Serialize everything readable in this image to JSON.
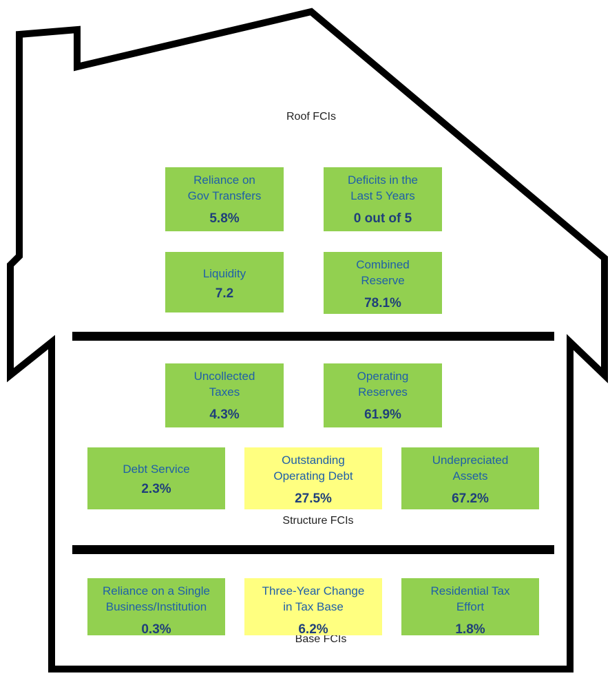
{
  "sections": [
    {
      "label": "Roof FCIs",
      "boxes": [
        {
          "lines": [
            "Reliance on",
            "Gov Transfers"
          ],
          "value": "5.8%",
          "color": "#92d050"
        },
        {
          "lines": [
            "Deficits in the",
            "Last 5 Years"
          ],
          "value": "0 out of 5",
          "color": "#92d050"
        },
        {
          "lines": [
            "Liquidity"
          ],
          "value": "7.2",
          "color": "#92d050"
        },
        {
          "lines": [
            "Combined",
            "Reserve"
          ],
          "value": "78.1%",
          "color": "#92d050"
        }
      ]
    },
    {
      "label": "Structure FCIs",
      "boxes": [
        {
          "lines": [
            "Uncollected",
            "Taxes"
          ],
          "value": "4.3%",
          "color": "#92d050"
        },
        {
          "lines": [
            "Operating",
            "Reserves"
          ],
          "value": "61.9%",
          "color": "#92d050"
        },
        {
          "lines": [
            "Debt Service"
          ],
          "value": "2.3%",
          "color": "#92d050"
        },
        {
          "lines": [
            "Outstanding",
            "Operating Debt"
          ],
          "value": "27.5%",
          "color": "#ffff80"
        },
        {
          "lines": [
            "Undepreciated",
            "Assets"
          ],
          "value": "67.2%",
          "color": "#92d050"
        }
      ]
    },
    {
      "label": "Base FCIs",
      "boxes": [
        {
          "lines": [
            "Reliance on a Single",
            "Business/Institution"
          ],
          "value": "0.3%",
          "color": "#92d050"
        },
        {
          "lines": [
            "Three-Year Change",
            "in Tax Base"
          ],
          "value": "6.2%",
          "color": "#ffff80"
        },
        {
          "lines": [
            "Residential Tax",
            "Effort"
          ],
          "value": "1.8%",
          "color": "#92d050"
        }
      ]
    }
  ]
}
